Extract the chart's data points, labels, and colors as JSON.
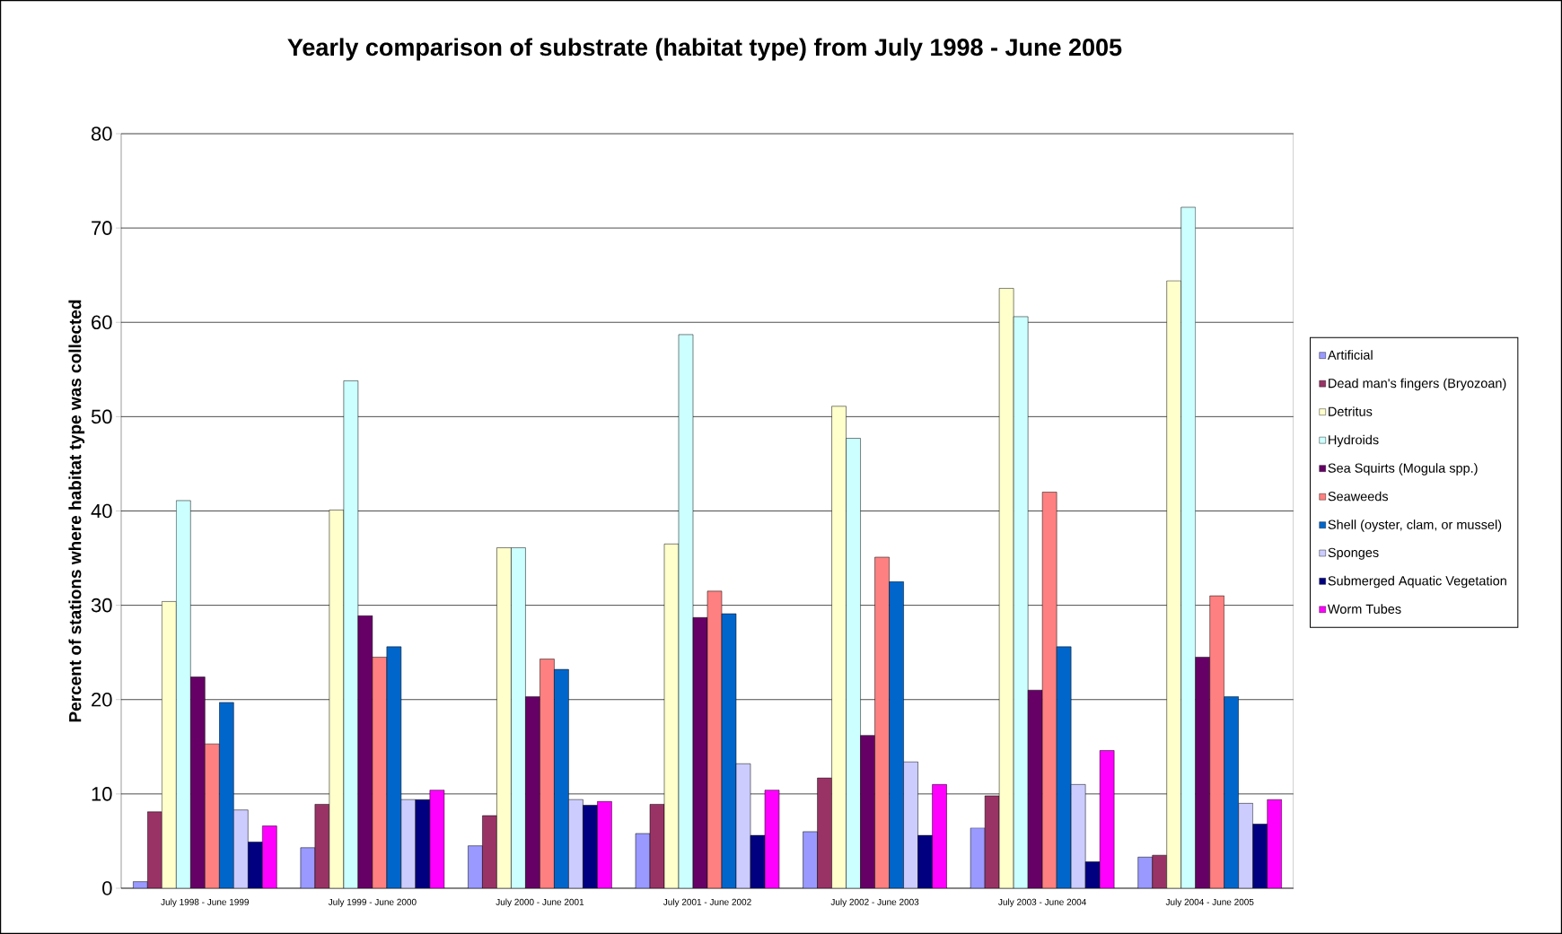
{
  "chart_data": {
    "type": "bar",
    "title": "Yearly comparison of substrate (habitat type) from July 1998 - June 2005",
    "ylabel": "Percent of stations where habitat type was collected",
    "categories": [
      "July 1998 - June 1999",
      "July 1999 - June 2000",
      "July 2000 - June 2001",
      "July 2001 - June 2002",
      "July 2002 - June 2003",
      "July 2003 - June 2004",
      "July 2004 - June 2005"
    ],
    "ylim": [
      0,
      80
    ],
    "yticks": [
      0,
      10,
      20,
      30,
      40,
      50,
      60,
      70,
      80
    ],
    "grid": "y",
    "legend": "right",
    "series": [
      {
        "name": "Artificial",
        "color": "#9999ff",
        "values": [
          0.7,
          4.3,
          4.5,
          5.8,
          6.0,
          6.4,
          3.3
        ]
      },
      {
        "name": "Dead man's fingers (Bryozoan)",
        "color": "#993366",
        "values": [
          8.1,
          8.9,
          7.7,
          8.9,
          11.7,
          9.8,
          3.5
        ]
      },
      {
        "name": "Detritus",
        "color": "#ffffcc",
        "values": [
          30.4,
          40.1,
          36.1,
          36.5,
          51.1,
          63.6,
          64.4
        ]
      },
      {
        "name": "Hydroids",
        "color": "#ccffff",
        "values": [
          41.1,
          53.8,
          36.1,
          58.7,
          47.7,
          60.6,
          72.2
        ]
      },
      {
        "name": "Sea Squirts (Mogula spp.)",
        "color": "#660066",
        "values": [
          22.4,
          28.9,
          20.3,
          28.7,
          16.2,
          21.0,
          24.5
        ]
      },
      {
        "name": "Seaweeds",
        "color": "#ff8080",
        "values": [
          15.3,
          24.5,
          24.3,
          31.5,
          35.1,
          42.0,
          31.0
        ]
      },
      {
        "name": "Shell (oyster, clam, or mussel)",
        "color": "#0066cc",
        "values": [
          19.7,
          25.6,
          23.2,
          29.1,
          32.5,
          25.6,
          20.3
        ]
      },
      {
        "name": "Sponges",
        "color": "#ccccff",
        "values": [
          8.3,
          9.4,
          9.4,
          13.2,
          13.4,
          11.0,
          9.0
        ]
      },
      {
        "name": "Submerged Aquatic Vegetation",
        "color": "#000080",
        "values": [
          4.9,
          9.4,
          8.8,
          5.6,
          5.6,
          2.8,
          6.8
        ]
      },
      {
        "name": "Worm Tubes",
        "color": "#ff00ff",
        "values": [
          6.6,
          10.4,
          9.2,
          10.4,
          11.0,
          14.6,
          9.4
        ]
      }
    ]
  }
}
